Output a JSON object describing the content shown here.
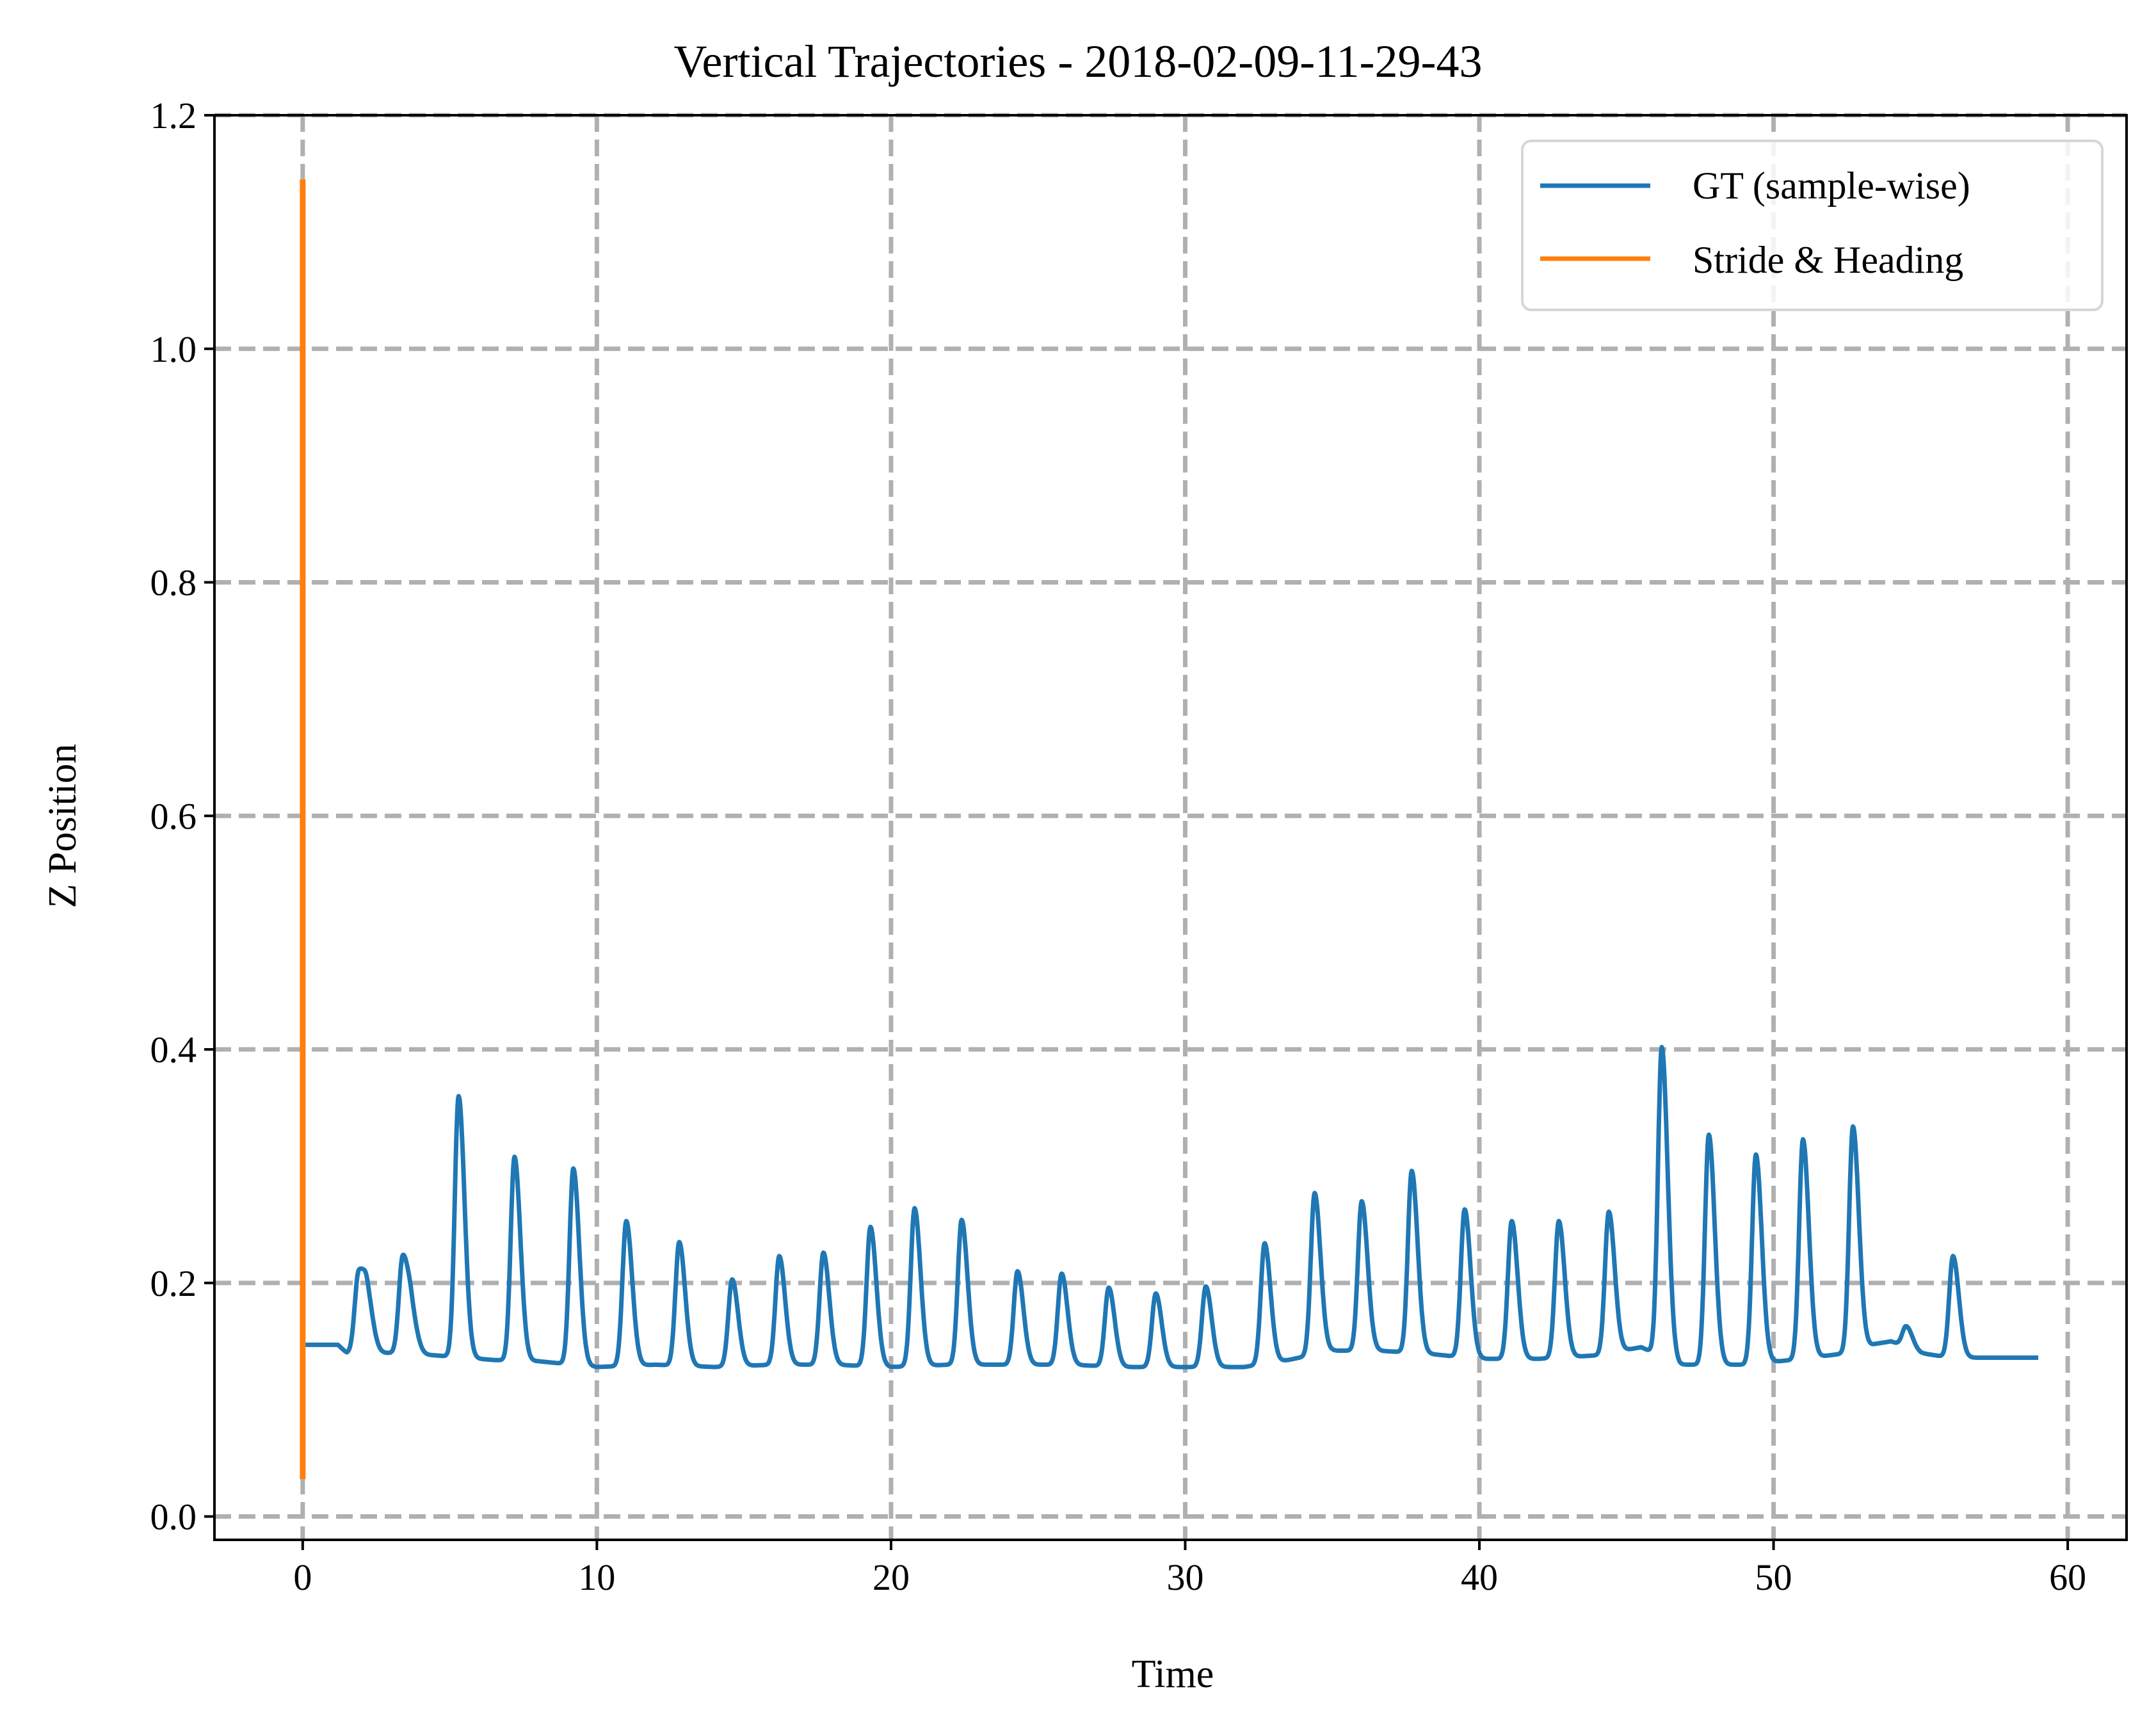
{
  "chart_data": {
    "type": "line",
    "title": "Vertical Trajectories - 2018-02-09-11-29-43",
    "xlabel": "Time",
    "ylabel": "Z Position",
    "xlim": [
      -3,
      62
    ],
    "ylim": [
      -0.02,
      1.2
    ],
    "xticks": [
      0,
      10,
      20,
      30,
      40,
      50,
      60
    ],
    "yticks": [
      0.0,
      0.2,
      0.4,
      0.6,
      0.8,
      1.0,
      1.2
    ],
    "xtick_labels": [
      "0",
      "10",
      "20",
      "30",
      "40",
      "50",
      "60"
    ],
    "ytick_labels": [
      "0.0",
      "0.2",
      "0.4",
      "0.6",
      "0.8",
      "1.0",
      "1.2"
    ],
    "grid": true,
    "grid_style": "dashed",
    "legend_position": "top-right",
    "series": [
      {
        "name": "GT (sample-wise)",
        "color": "#1f77b4",
        "baseline_points": [
          [
            0,
            0.147
          ],
          [
            1.2,
            0.147
          ],
          [
            1.5,
            0.14
          ],
          [
            3,
            0.14
          ],
          [
            4.5,
            0.138
          ],
          [
            6.5,
            0.134
          ],
          [
            8,
            0.133
          ],
          [
            10,
            0.128
          ],
          [
            12,
            0.13
          ],
          [
            14,
            0.128
          ],
          [
            16,
            0.13
          ],
          [
            18,
            0.13
          ],
          [
            20,
            0.128
          ],
          [
            22,
            0.13
          ],
          [
            24,
            0.13
          ],
          [
            26,
            0.13
          ],
          [
            28,
            0.128
          ],
          [
            30,
            0.128
          ],
          [
            32,
            0.128
          ],
          [
            33.5,
            0.134
          ],
          [
            35,
            0.142
          ],
          [
            36.5,
            0.142
          ],
          [
            38,
            0.14
          ],
          [
            40,
            0.135
          ],
          [
            42,
            0.135
          ],
          [
            44,
            0.138
          ],
          [
            45.5,
            0.145
          ],
          [
            46.8,
            0.13
          ],
          [
            49,
            0.13
          ],
          [
            51,
            0.135
          ],
          [
            52.5,
            0.14
          ],
          [
            53.5,
            0.148
          ],
          [
            54,
            0.15
          ],
          [
            55,
            0.14
          ],
          [
            56,
            0.136
          ],
          [
            57,
            0.136
          ],
          [
            59,
            0.136
          ]
        ],
        "peaks": [
          [
            1.9,
            0.208
          ],
          [
            2.2,
            0.18
          ],
          [
            3.4,
            0.222
          ],
          [
            3.7,
            0.165
          ],
          [
            5.3,
            0.36
          ],
          [
            7.2,
            0.308
          ],
          [
            9.2,
            0.298
          ],
          [
            11.0,
            0.253
          ],
          [
            12.8,
            0.235
          ],
          [
            14.6,
            0.203
          ],
          [
            16.2,
            0.223
          ],
          [
            17.7,
            0.226
          ],
          [
            19.3,
            0.248
          ],
          [
            20.8,
            0.264
          ],
          [
            22.4,
            0.254
          ],
          [
            24.3,
            0.21
          ],
          [
            25.8,
            0.208
          ],
          [
            27.4,
            0.196
          ],
          [
            29.0,
            0.191
          ],
          [
            30.7,
            0.197
          ],
          [
            32.7,
            0.234
          ],
          [
            34.4,
            0.277
          ],
          [
            36.0,
            0.27
          ],
          [
            37.7,
            0.296
          ],
          [
            39.5,
            0.263
          ],
          [
            41.1,
            0.253
          ],
          [
            42.7,
            0.253
          ],
          [
            44.4,
            0.261
          ],
          [
            46.2,
            0.402
          ],
          [
            47.8,
            0.327
          ],
          [
            49.4,
            0.31
          ],
          [
            51.0,
            0.323
          ],
          [
            52.7,
            0.334
          ],
          [
            54.5,
            0.163
          ],
          [
            56.1,
            0.223
          ]
        ]
      },
      {
        "name": "Stride & Heading",
        "color": "#ff7f0e",
        "x": [
          0,
          0
        ],
        "values": [
          0.032,
          1.145
        ]
      }
    ]
  }
}
